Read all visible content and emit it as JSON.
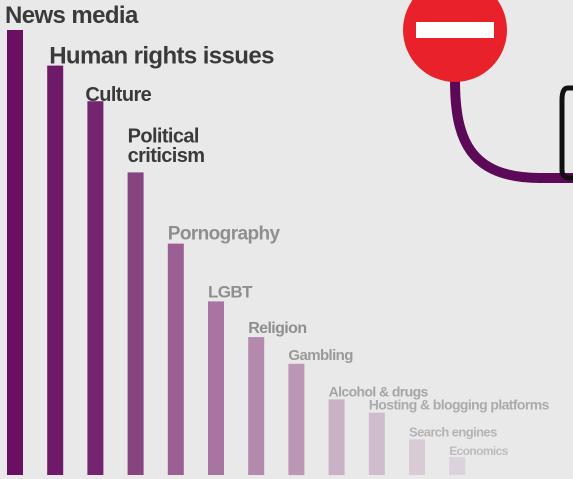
{
  "chart_data": {
    "type": "bar",
    "categories": [
      "News media",
      "Human rights issues",
      "Culture",
      "Political criticism",
      "Pornography",
      "LGBT",
      "Religion",
      "Gambling",
      "Alcohol & drugs",
      "Hosting & blogging platforms",
      "Search engines",
      "Economics"
    ],
    "values": [
      100,
      92,
      84,
      68,
      52,
      39,
      31,
      25,
      17,
      14,
      8,
      4
    ],
    "ylim": [
      0,
      100
    ],
    "grid": false,
    "legend": "none",
    "bar_colors": [
      "#6b0f62",
      "#6f1a68",
      "#75246f",
      "#87457f",
      "#9c5f94",
      "#a874a0",
      "#b38aad",
      "#bb97b5",
      "#c9b1c6",
      "#cfbccd",
      "#d8cbd6",
      "#dcd2db"
    ],
    "label_colors": [
      "#3a3a3a",
      "#3a3a3a",
      "#3a3a3a",
      "#3a3a3a",
      "#8f8f8f",
      "#8f8f8f",
      "#8f8f8f",
      "#9a9a9a",
      "#a5a5a5",
      "#ababab",
      "#b4b4b4",
      "#bcbcbc"
    ]
  },
  "decoration": {
    "icon": "no-entry-sign-icon",
    "sign_color": "#e8212b",
    "bar_color": "#ffffff",
    "cable_color": "#5c0a58"
  }
}
